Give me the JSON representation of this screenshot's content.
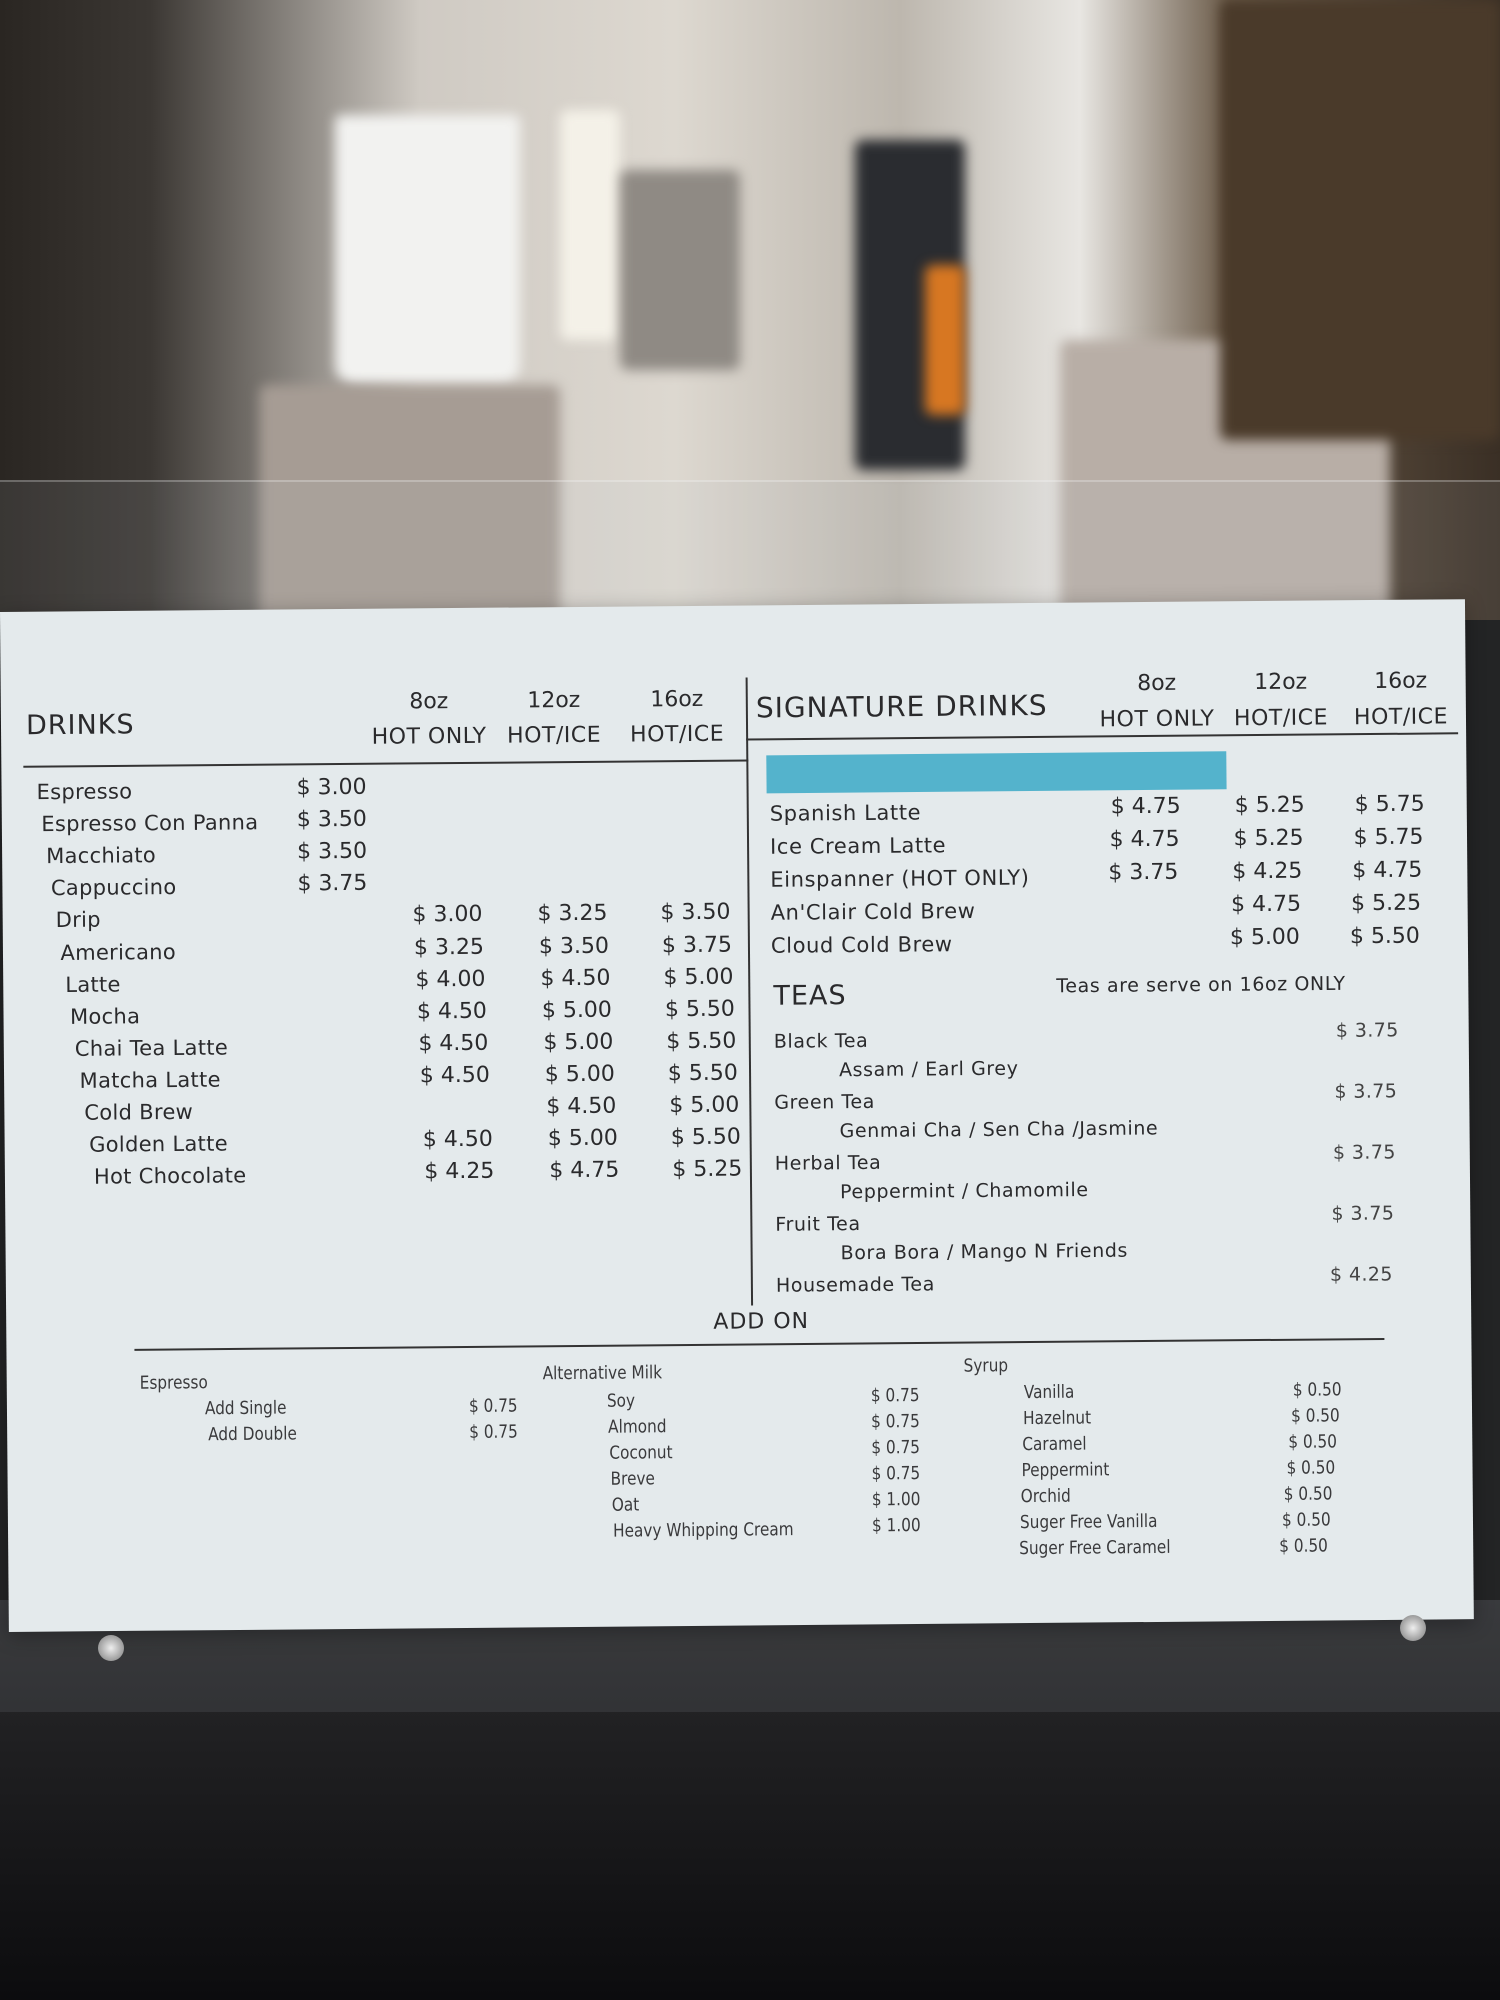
{
  "drinks": {
    "title": "DRINKS",
    "sizes": [
      {
        "size": "8oz",
        "temp": "HOT ONLY"
      },
      {
        "size": "12oz",
        "temp": "HOT/ICE"
      },
      {
        "size": "16oz",
        "temp": "HOT/ICE"
      }
    ],
    "items": [
      {
        "name": "Espresso",
        "price": "$ 3.00"
      },
      {
        "name": "Espresso Con Panna",
        "price": "$ 3.50"
      },
      {
        "name": "Macchiato",
        "price": "$ 3.50"
      },
      {
        "name": "Cappuccino",
        "price": "$ 3.75"
      },
      {
        "name": "Drip",
        "prices": [
          "$ 3.00",
          "$ 3.25",
          "$ 3.50"
        ]
      },
      {
        "name": "Americano",
        "prices": [
          "$ 3.25",
          "$ 3.50",
          "$ 3.75"
        ]
      },
      {
        "name": "Latte",
        "prices": [
          "$ 4.00",
          "$ 4.50",
          "$ 5.00"
        ]
      },
      {
        "name": "Mocha",
        "prices": [
          "$ 4.50",
          "$ 5.00",
          "$ 5.50"
        ]
      },
      {
        "name": "Chai Tea Latte",
        "prices": [
          "$ 4.50",
          "$ 5.00",
          "$ 5.50"
        ]
      },
      {
        "name": "Matcha Latte",
        "prices": [
          "$ 4.50",
          "$ 5.00",
          "$ 5.50"
        ]
      },
      {
        "name": "Cold Brew",
        "prices": [
          "",
          "$ 4.50",
          "$ 5.00"
        ]
      },
      {
        "name": "Golden Latte",
        "prices": [
          "$ 4.50",
          "$ 5.00",
          "$ 5.50"
        ]
      },
      {
        "name": "Hot Chocolate",
        "prices": [
          "$ 4.25",
          "$ 4.75",
          "$ 5.25"
        ]
      }
    ]
  },
  "signature": {
    "title": "SIGNATURE DRINKS",
    "sizes": [
      {
        "size": "8oz",
        "temp": "HOT ONLY"
      },
      {
        "size": "12oz",
        "temp": "HOT/ICE"
      },
      {
        "size": "16oz",
        "temp": "HOT/ICE"
      }
    ],
    "tape_color": "#54b3cc",
    "items": [
      {
        "name": "Spanish Latte",
        "prices": [
          "$ 4.75",
          "$ 5.25",
          "$ 5.75"
        ]
      },
      {
        "name": "Ice Cream Latte",
        "prices": [
          "$ 4.75",
          "$ 5.25",
          "$ 5.75"
        ]
      },
      {
        "name": "Einspanner (HOT ONLY)",
        "prices": [
          "$ 3.75",
          "$ 4.25",
          "$ 4.75"
        ]
      },
      {
        "name": "An'Clair Cold Brew",
        "prices": [
          "",
          "$ 4.75",
          "$ 5.25"
        ]
      },
      {
        "name": "Cloud Cold Brew",
        "prices": [
          "",
          "$ 5.00",
          "$ 5.50"
        ]
      }
    ]
  },
  "teas": {
    "title": "TEAS",
    "note": "Teas are serve on 16oz ONLY",
    "items": [
      {
        "name": "Black Tea",
        "price": "$ 3.75",
        "sub": "Assam / Earl Grey"
      },
      {
        "name": "Green Tea",
        "price": "$ 3.75",
        "sub": "Genmai Cha / Sen Cha /Jasmine"
      },
      {
        "name": "Herbal Tea",
        "price": "$ 3.75",
        "sub": "Peppermint / Chamomile"
      },
      {
        "name": "Fruit Tea",
        "price": "$ 3.75",
        "sub": "Bora Bora / Mango N Friends"
      },
      {
        "name": "Housemade Tea",
        "price": "$ 4.25"
      }
    ]
  },
  "addon": {
    "title": "ADD ON",
    "espresso": {
      "title": "Espresso",
      "items": [
        {
          "name": "Add Single",
          "price": "$ 0.75"
        },
        {
          "name": "Add Double",
          "price": "$ 0.75"
        }
      ]
    },
    "milk": {
      "title": "Alternative Milk",
      "items": [
        {
          "name": "Soy",
          "price": "$ 0.75"
        },
        {
          "name": "Almond",
          "price": "$ 0.75"
        },
        {
          "name": "Coconut",
          "price": "$ 0.75"
        },
        {
          "name": "Breve",
          "price": "$ 0.75"
        },
        {
          "name": "Oat",
          "price": "$ 1.00"
        },
        {
          "name": "Heavy Whipping Cream",
          "price": "$ 1.00"
        }
      ]
    },
    "syrup": {
      "title": "Syrup",
      "items": [
        {
          "name": "Vanilla",
          "price": "$ 0.50"
        },
        {
          "name": "Hazelnut",
          "price": "$ 0.50"
        },
        {
          "name": "Caramel",
          "price": "$ 0.50"
        },
        {
          "name": "Peppermint",
          "price": "$ 0.50"
        },
        {
          "name": "Orchid",
          "price": "$ 0.50"
        },
        {
          "name": "Suger Free Vanilla",
          "price": "$ 0.50"
        },
        {
          "name": "Suger Free Caramel",
          "price": "$ 0.50"
        }
      ]
    }
  }
}
